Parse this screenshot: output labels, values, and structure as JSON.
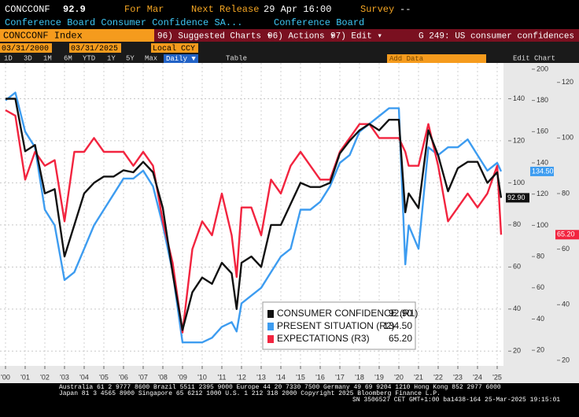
{
  "ui": {
    "ticker": "CONCCONF",
    "last": "92.9",
    "for_label": "For Mar",
    "next_release_label": "Next Release",
    "next_release": "29 Apr 16:00",
    "survey_label": "Survey",
    "survey": "--",
    "description": "Conference Board Consumer Confidence SA...",
    "source": "Conference Board",
    "security": "CONCCONF Index",
    "menu_suggested": "96) Suggested Charts ▾",
    "menu_actions": "96) Actions ▾",
    "menu_edit": "97) Edit ▾",
    "chart_name": "G 249: US consumer confidences",
    "start_date": "03/31/2000",
    "end_date": "03/31/2025",
    "currency": "Local CCY",
    "ranges": [
      "1D",
      "3D",
      "1M",
      "6M",
      "YTD",
      "1Y",
      "5Y",
      "Max"
    ],
    "frequency": "Daily ▼",
    "table": "Table",
    "add_data": "Add Data",
    "edit_chart": "Edit Chart",
    "footer": [
      "Australia 61 2 9777 8600 Brazil 5511 2395 9000 Europe 44 20 7330 7500 Germany 49 69 9204 1210 Hong Kong 852 2977 6000",
      "Japan 81 3 4565 8900        Singapore 65 6212 1000        U.S. 1 212 318 2000             Copyright 2025 Bloomberg Finance L.P.",
      "SN 3506527 CET  GMT+1:00 ba1438-164 25-Mar-2025 19:15:01"
    ]
  },
  "chart_data": {
    "type": "line",
    "x": [
      2000,
      2000.5,
      2001,
      2001.5,
      2002,
      2002.5,
      2003,
      2003.5,
      2004,
      2004.5,
      2005,
      2005.5,
      2006,
      2006.5,
      2007,
      2007.5,
      2008,
      2008.5,
      2009,
      2009.5,
      2010,
      2010.5,
      2011,
      2011.5,
      2011.75,
      2012,
      2012.5,
      2013,
      2013.5,
      2014,
      2014.5,
      2015,
      2015.5,
      2016,
      2016.5,
      2017,
      2017.5,
      2018,
      2018.5,
      2019,
      2019.5,
      2020,
      2020.33,
      2020.5,
      2021,
      2021.5,
      2022,
      2022.5,
      2023,
      2023.5,
      2024,
      2024.5,
      2025,
      2025.2
    ],
    "series": [
      {
        "name": "CONSUMER CONFIDENCE (R1)",
        "color": "#111111",
        "axis": "y",
        "value_labels": [
          "92.90"
        ],
        "values": [
          140,
          140,
          115,
          118,
          95,
          97,
          65,
          80,
          95,
          100,
          103,
          103,
          106,
          105,
          110,
          105,
          88,
          57,
          30,
          48,
          55,
          52,
          62,
          57,
          40,
          62,
          65,
          60,
          80,
          80,
          90,
          100,
          98,
          98,
          100,
          114,
          120,
          125,
          128,
          125,
          130,
          130,
          86,
          95,
          88,
          125,
          113,
          96,
          107,
          110,
          110,
          100,
          105,
          92.9
        ]
      },
      {
        "name": "PRESENT SITUATION (R2)",
        "color": "#3d9cf0",
        "axis": "y2",
        "value_labels": [
          "134.50"
        ],
        "values": [
          180,
          185,
          160,
          150,
          110,
          100,
          65,
          70,
          85,
          100,
          110,
          120,
          130,
          130,
          135,
          125,
          100,
          70,
          25,
          25,
          25,
          28,
          35,
          38,
          32,
          50,
          55,
          60,
          70,
          80,
          85,
          110,
          110,
          115,
          125,
          140,
          145,
          160,
          165,
          170,
          175,
          175,
          75,
          100,
          85,
          150,
          145,
          150,
          150,
          155,
          145,
          135,
          140,
          134.5
        ]
      },
      {
        "name": "EXPECTATIONS (R3)",
        "color": "#f2243f",
        "axis": "y3",
        "value_labels": [
          "65.20"
        ],
        "values": [
          110,
          108,
          85,
          95,
          90,
          92,
          70,
          95,
          95,
          100,
          95,
          95,
          95,
          90,
          95,
          90,
          70,
          55,
          30,
          60,
          70,
          65,
          80,
          65,
          50,
          75,
          75,
          65,
          85,
          80,
          90,
          95,
          90,
          85,
          85,
          95,
          100,
          105,
          105,
          100,
          100,
          100,
          95,
          90,
          90,
          105,
          90,
          70,
          75,
          80,
          75,
          80,
          90,
          65.2
        ]
      }
    ],
    "xlim": [
      1999.72,
      2025.32
    ],
    "xticks": [
      {
        "value": 2000,
        "label": "'00"
      },
      {
        "value": 2001,
        "label": "'01"
      },
      {
        "value": 2002,
        "label": "'02"
      },
      {
        "value": 2003,
        "label": "'03"
      },
      {
        "value": 2004,
        "label": "'04"
      },
      {
        "value": 2005,
        "label": "'05"
      },
      {
        "value": 2006,
        "label": "'06"
      },
      {
        "value": 2007,
        "label": "'07"
      },
      {
        "value": 2008,
        "label": "'08"
      },
      {
        "value": 2009,
        "label": "'09"
      },
      {
        "value": 2010,
        "label": "'10"
      },
      {
        "value": 2011,
        "label": "'11"
      },
      {
        "value": 2012,
        "label": "'12"
      },
      {
        "value": 2013,
        "label": "'13"
      },
      {
        "value": 2014,
        "label": "'14"
      },
      {
        "value": 2015,
        "label": "'15"
      },
      {
        "value": 2016,
        "label": "'16"
      },
      {
        "value": 2017,
        "label": "'17"
      },
      {
        "value": 2018,
        "label": "'18"
      },
      {
        "value": 2019,
        "label": "'19"
      },
      {
        "value": 2020,
        "label": "'20"
      },
      {
        "value": 2021,
        "label": "'21"
      },
      {
        "value": 2022,
        "label": "'22"
      },
      {
        "value": 2023,
        "label": "'23"
      },
      {
        "value": 2024,
        "label": "'24"
      },
      {
        "value": 2025,
        "label": "'25"
      }
    ],
    "ylim": [
      13,
      157
    ],
    "yticks": [
      20,
      40,
      60,
      80,
      100,
      120,
      140
    ],
    "y2lim": [
      10,
      204
    ],
    "y2ticks": [
      20,
      40,
      60,
      80,
      100,
      120,
      140,
      160,
      180,
      200
    ],
    "y3lim": [
      18,
      127
    ],
    "y3ticks": [
      20,
      40,
      60,
      80,
      100,
      120
    ],
    "grid": true
  }
}
